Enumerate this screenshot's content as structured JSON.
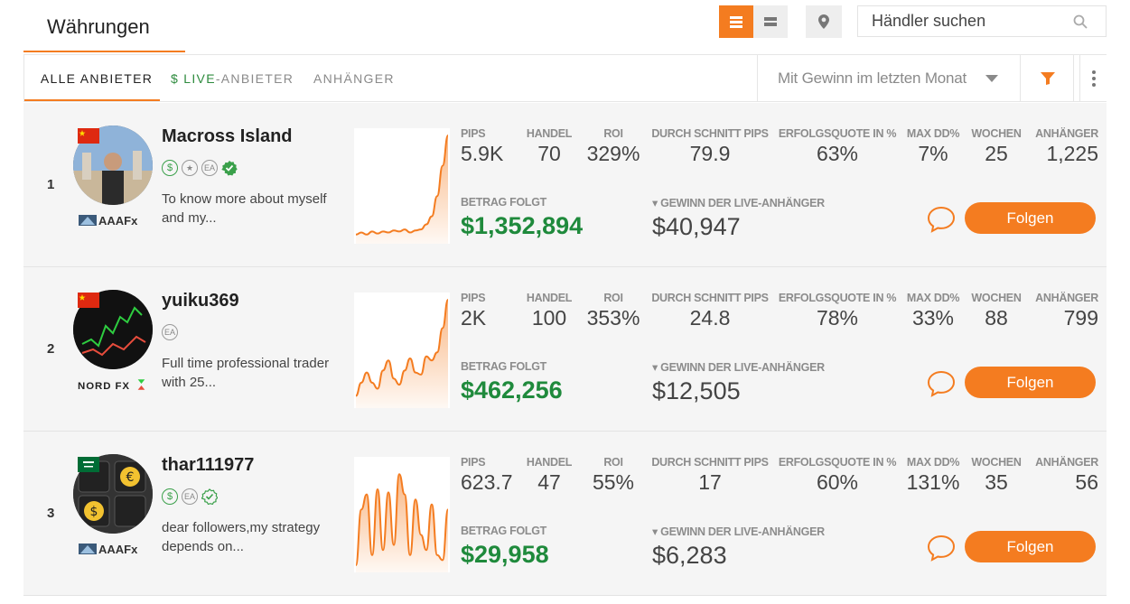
{
  "header": {
    "title": "Währungen",
    "search_placeholder": "Händler suchen"
  },
  "tabs": {
    "all": "ALLE ANBIETER",
    "live_prefix": "$ LIVE",
    "live_suffix": "-ANBIETER",
    "followers": "ANHÄNGER"
  },
  "sort": {
    "selected": "Mit Gewinn im letzten Monat"
  },
  "labels": {
    "pips": "PIPS",
    "handel": "HANDEL",
    "roi": "ROI",
    "avg_pips": "DURCH SCHNITT PIPS",
    "success": "ERFOLGSQUOTE IN %",
    "max_dd": "MAX DD%",
    "weeks": "WOCHEN",
    "followers": "ANHÄNGER",
    "amount_following": "BETRAG FOLGT",
    "live_profit": "▾ GEWINN DER LIVE-ANHÄNGER",
    "follow_button": "Folgen"
  },
  "colors": {
    "accent": "#f47c20",
    "money_green": "#1f8a3c"
  },
  "providers": [
    {
      "rank": "1",
      "name": "Macross Island",
      "flag": "china",
      "broker": "AAAFx",
      "badges": [
        "dollar",
        "star",
        "EA",
        "verified-filled"
      ],
      "description": "To know more about myself and my...",
      "pips": "5.9K",
      "handel": "70",
      "roi": "329%",
      "avg_pips": "79.9",
      "success": "63%",
      "max_dd": "7%",
      "weeks": "25",
      "followers": "1,225",
      "amount_following": "$1,352,894",
      "live_profit": "$40,947",
      "spark": [
        2,
        4,
        2,
        5,
        3,
        5,
        4,
        6,
        5,
        7,
        4,
        6,
        7,
        12,
        20,
        40,
        70,
        100
      ]
    },
    {
      "rank": "2",
      "name": "yuiku369",
      "flag": "china",
      "broker": "NORD FX",
      "badges": [
        "EA"
      ],
      "description": "Full time professional trader with 25...",
      "pips": "2K",
      "handel": "100",
      "roi": "353%",
      "avg_pips": "24.8",
      "success": "78%",
      "max_dd": "33%",
      "weeks": "88",
      "followers": "799",
      "amount_following": "$462,256",
      "live_profit": "$12,505",
      "spark": [
        5,
        18,
        28,
        18,
        12,
        30,
        40,
        22,
        16,
        30,
        42,
        28,
        26,
        44,
        40,
        48,
        72,
        100
      ]
    },
    {
      "rank": "3",
      "name": "thar111977",
      "flag": "saudi",
      "broker": "AAAFx",
      "badges": [
        "dollar",
        "EA",
        "verified-outline"
      ],
      "description": "dear followers,my strategy depends on...",
      "pips": "623.7",
      "handel": "47",
      "roi": "55%",
      "avg_pips": "17",
      "success": "60%",
      "max_dd": "131%",
      "weeks": "35",
      "followers": "56",
      "amount_following": "$29,958",
      "live_profit": "$6,283",
      "spark": [
        0,
        55,
        70,
        10,
        75,
        15,
        72,
        20,
        90,
        70,
        10,
        65,
        30,
        15,
        60,
        10,
        5,
        55
      ]
    }
  ]
}
